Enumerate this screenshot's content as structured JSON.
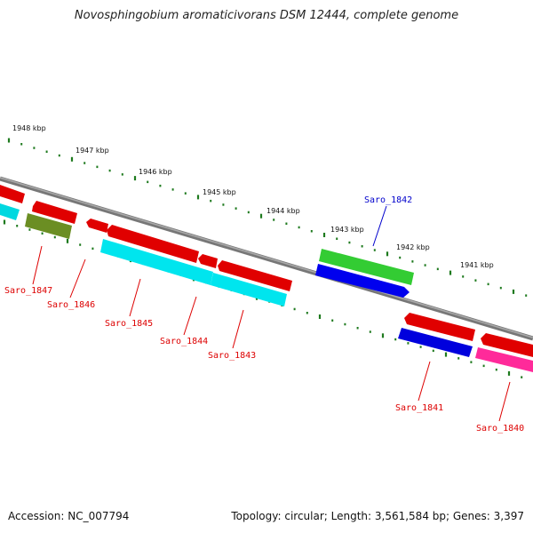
{
  "title": "Novosphingobium aromaticivorans DSM 12444, complete genome",
  "accession": "Accession: NC_007794",
  "summary": "Topology: circular; Length: 3,561,584 bp; Genes: 3,397",
  "colors": {
    "backbone": "#888888",
    "tick": "#1e7a1e",
    "label_red": "#dd0000",
    "label_blue": "#0000cc"
  },
  "kbp_labels": [
    "1948 kbp",
    "1947 kbp",
    "1946 kbp",
    "1945 kbp",
    "1944 kbp",
    "1943 kbp",
    "1942 kbp",
    "1941 kbp"
  ],
  "genes": [
    {
      "name": "Saro_1847",
      "label_color": "red"
    },
    {
      "name": "Saro_1846",
      "label_color": "red"
    },
    {
      "name": "Saro_1845",
      "label_color": "red"
    },
    {
      "name": "Saro_1844",
      "label_color": "red"
    },
    {
      "name": "Saro_1843",
      "label_color": "red"
    },
    {
      "name": "Saro_1842",
      "label_color": "blue"
    },
    {
      "name": "Saro_1841",
      "label_color": "red"
    },
    {
      "name": "Saro_1840",
      "label_color": "red"
    }
  ]
}
